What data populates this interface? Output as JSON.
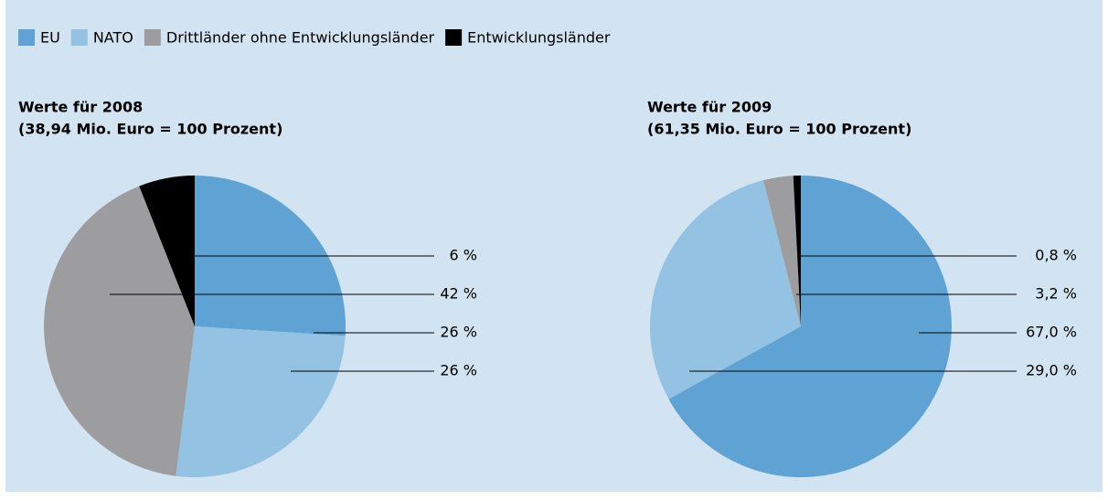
{
  "legend": [
    {
      "name": "EU",
      "color": "#5fa3d4"
    },
    {
      "name": "NATO",
      "color": "#93c2e3"
    },
    {
      "name": "Drittländer ohne Entwicklungsländer",
      "color": "#9d9d9f"
    },
    {
      "name": "Entwicklungsländer",
      "color": "#000000"
    }
  ],
  "chart_data": [
    {
      "type": "pie",
      "title": "Werte für 2008",
      "subtitle": "(38,94 Mio. Euro = 100 Prozent)",
      "values": [
        26,
        26,
        42,
        6
      ],
      "value_labels": [
        "26 %",
        "26 %",
        "42 %",
        "6 %"
      ]
    },
    {
      "type": "pie",
      "title": "Werte für 2009",
      "subtitle": "(61,35 Mio. Euro = 100 Prozent)",
      "values": [
        67.0,
        29.0,
        3.2,
        0.8
      ],
      "value_labels": [
        "67,0 %",
        "29,0 %",
        "3,2 %",
        "0,8 %"
      ]
    }
  ]
}
